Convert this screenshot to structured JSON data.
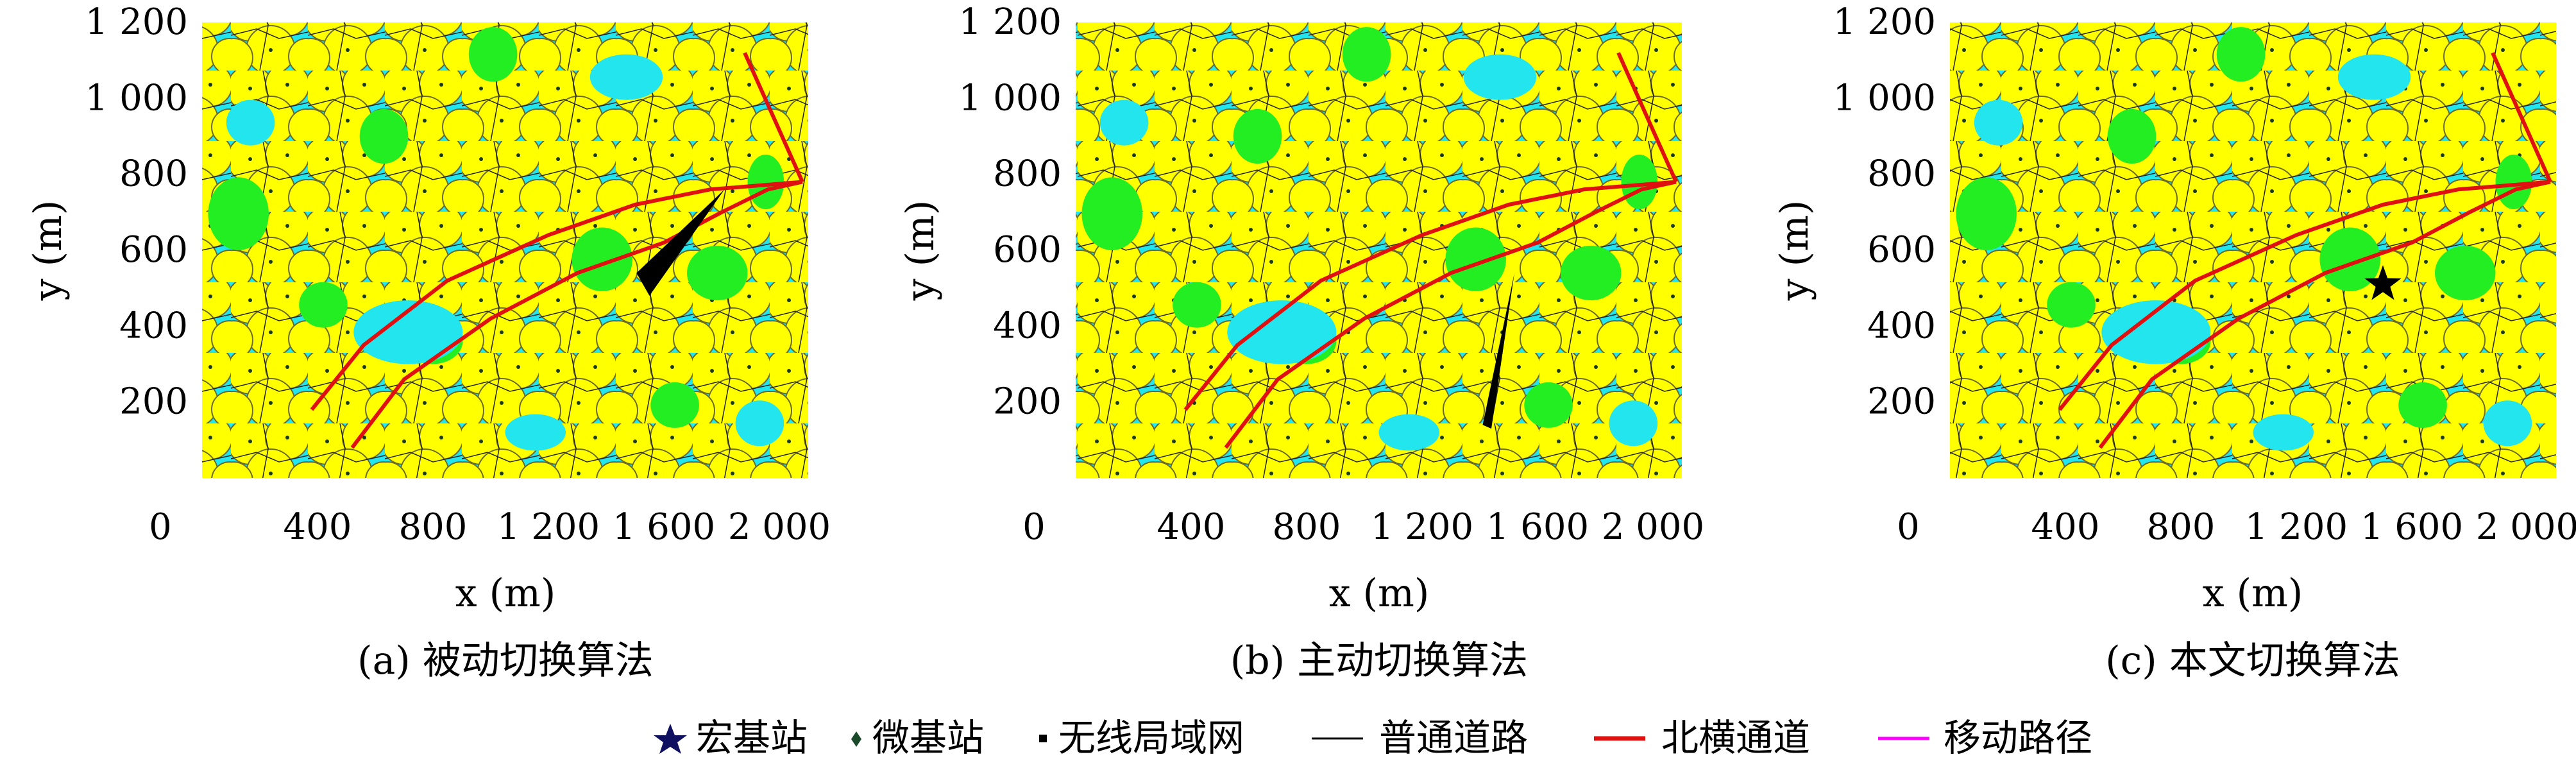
{
  "chart_data": [
    {
      "type": "map",
      "caption": "(a) 被动切换算法",
      "xlabel": "x (m)",
      "ylabel": "y (m)",
      "xlim": [
        0,
        2100
      ],
      "ylim": [
        0,
        1200
      ],
      "xticks": [
        "0",
        "400",
        "800",
        "1 200",
        "1 600",
        "2 000"
      ],
      "yticks": [
        "200",
        "400",
        "600",
        "800",
        "1 000",
        "1 200"
      ],
      "xtick_values": [
        0,
        400,
        800,
        1200,
        1600,
        2000
      ],
      "ytick_values": [
        200,
        400,
        600,
        800,
        1000,
        1200
      ],
      "path_shape": "fan",
      "path_points": [
        [
          1550,
          480
        ],
        [
          1810,
          760
        ],
        [
          1505,
          540
        ]
      ]
    },
    {
      "type": "map",
      "caption": "(b) 主动切换算法",
      "xlabel": "x (m)",
      "ylabel": "y (m)",
      "xlim": [
        0,
        2100
      ],
      "ylim": [
        0,
        1200
      ],
      "xticks": [
        "0",
        "400",
        "800",
        "1 200",
        "1 600",
        "2 000"
      ],
      "yticks": [
        "200",
        "400",
        "600",
        "800",
        "1 000",
        "1 200"
      ],
      "xtick_values": [
        0,
        400,
        800,
        1200,
        1600,
        2000
      ],
      "ytick_values": [
        200,
        400,
        600,
        800,
        1000,
        1200
      ],
      "path_shape": "spike",
      "path_points": [
        [
          1410,
          140
        ],
        [
          1520,
          540
        ],
        [
          1440,
          130
        ]
      ]
    },
    {
      "type": "map",
      "caption": "(c) 本文切换算法",
      "xlabel": "x (m)",
      "ylabel": "y (m)",
      "xlim": [
        0,
        2100
      ],
      "ylim": [
        0,
        1200
      ],
      "xticks": [
        "0",
        "400",
        "800",
        "1 200",
        "1 600",
        "2 000"
      ],
      "yticks": [
        "200",
        "400",
        "600",
        "800",
        "1 000",
        "1 200"
      ],
      "xtick_values": [
        0,
        400,
        800,
        1200,
        1600,
        2000
      ],
      "ytick_values": [
        200,
        400,
        600,
        800,
        1000,
        1200
      ],
      "path_shape": "star",
      "path_points": [
        [
          1500,
          510
        ]
      ]
    }
  ],
  "roads": {
    "north_channel": [
      [
        [
          380,
          180
        ],
        [
          560,
          350
        ],
        [
          850,
          520
        ],
        [
          1200,
          640
        ],
        [
          1500,
          720
        ],
        [
          1760,
          760
        ],
        [
          2080,
          780
        ]
      ],
      [
        [
          520,
          80
        ],
        [
          700,
          260
        ],
        [
          1000,
          420
        ],
        [
          1300,
          540
        ],
        [
          1600,
          620
        ],
        [
          1800,
          700
        ],
        [
          1960,
          760
        ],
        [
          2080,
          780
        ]
      ],
      [
        [
          1880,
          1120
        ],
        [
          2080,
          780
        ]
      ]
    ]
  },
  "legend": {
    "items": [
      {
        "label": "宏基站",
        "symbol": "star",
        "color": "#101060"
      },
      {
        "label": "微基站",
        "symbol": "diamond",
        "color": "#1a4a2a"
      },
      {
        "label": "无线局域网",
        "symbol": "square",
        "color": "#000000"
      },
      {
        "label": "普通道路",
        "symbol": "line",
        "color": "#000000"
      },
      {
        "label": "北横通道",
        "symbol": "line",
        "color": "#e01010"
      },
      {
        "label": "移动路径",
        "symbol": "line",
        "color": "#ff00ff"
      }
    ]
  },
  "colors": {
    "background_water": "#22e5ee",
    "cell_yellow": "#ffff00",
    "cell_green": "#22ee22",
    "cell_edge": "#5a5a2a",
    "road_red": "#e01010",
    "path_black": "#000000"
  }
}
